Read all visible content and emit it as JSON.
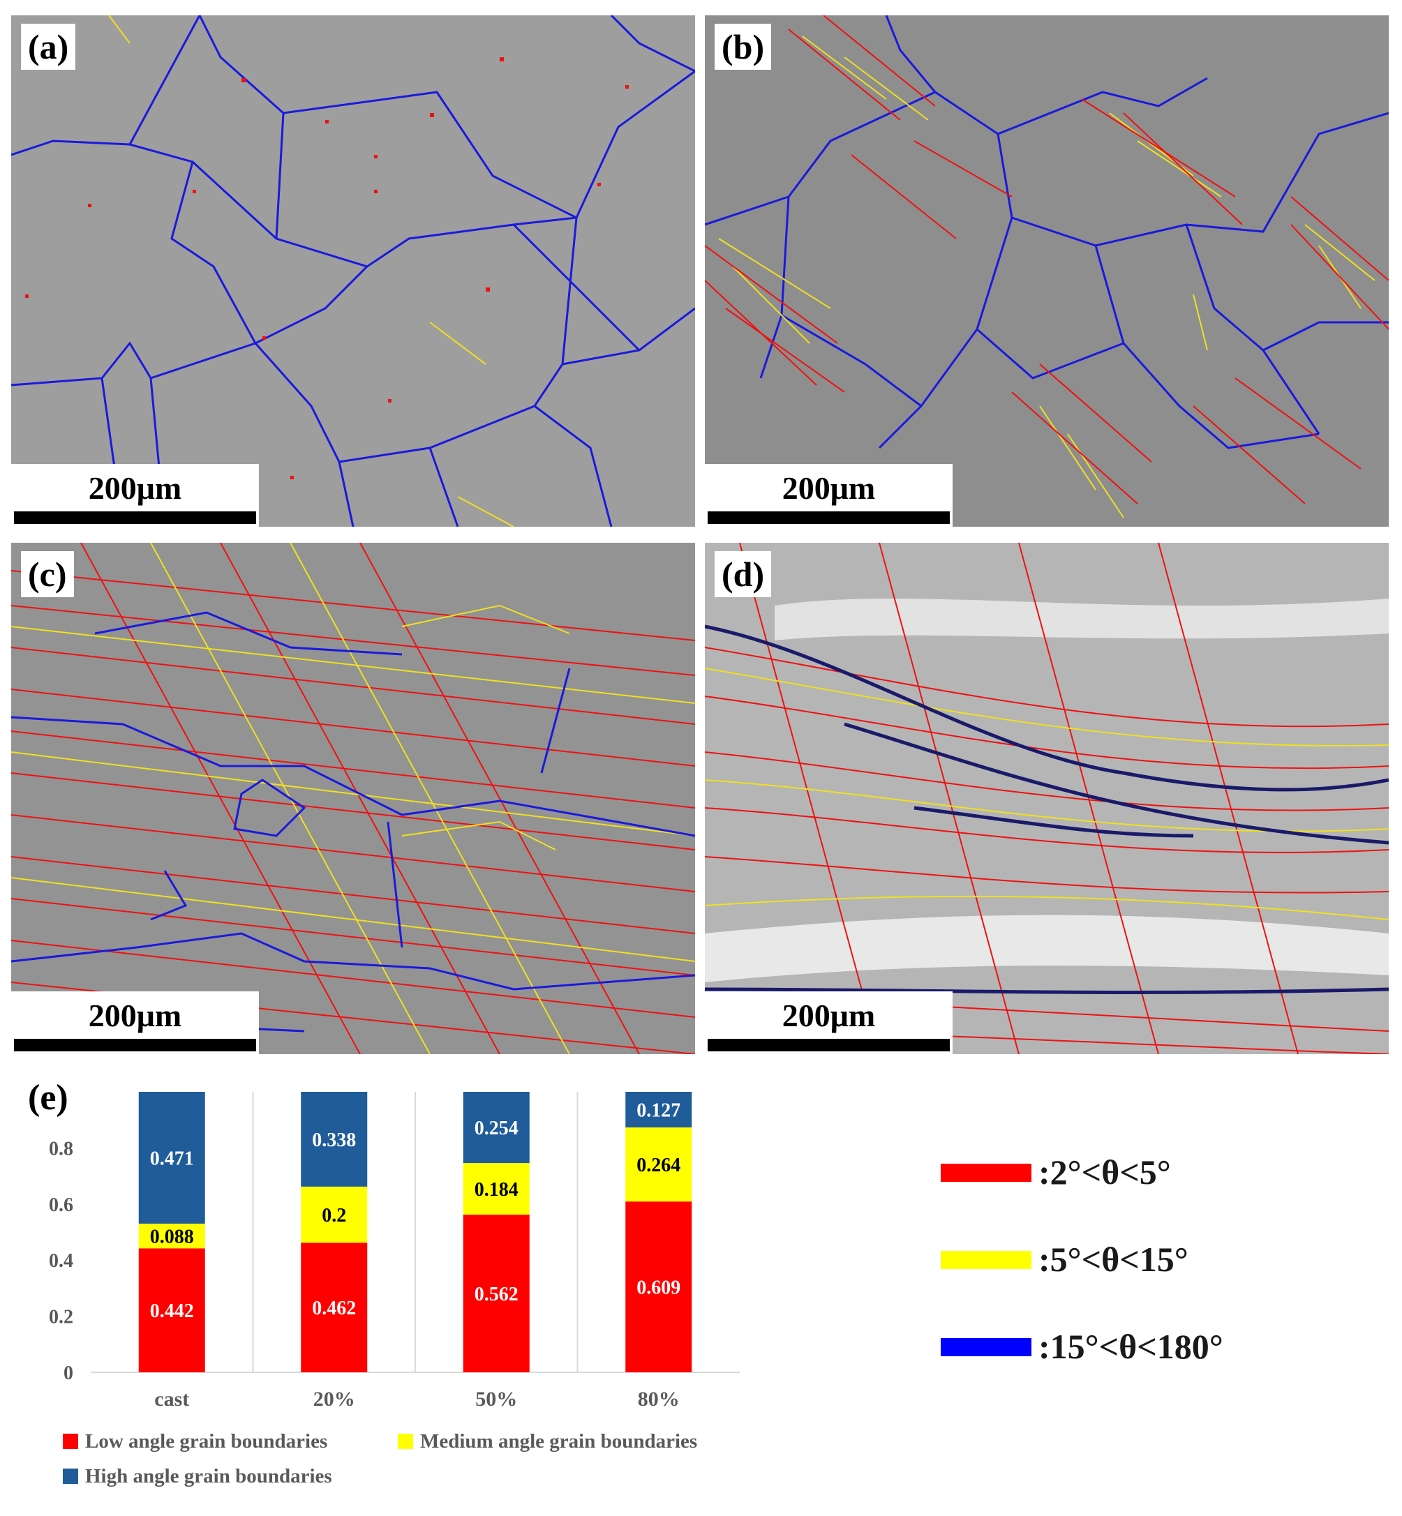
{
  "panels": [
    {
      "label": "(a)",
      "scale": "200μm"
    },
    {
      "label": "(b)",
      "scale": "200μm"
    },
    {
      "label": "(c)",
      "scale": "200μm"
    },
    {
      "label": "(d)",
      "scale": "200μm"
    }
  ],
  "angle_legend": {
    "items": [
      {
        "text": ":2°<θ<5°",
        "color": "#ff0000"
      },
      {
        "text": ":5°<θ<15°",
        "color": "#ffff00"
      },
      {
        "text": ":15°<θ<180°",
        "color": "#0000ff"
      }
    ]
  },
  "chart_data": {
    "label": "(e)",
    "type": "bar",
    "stacked": true,
    "categories": [
      "cast",
      "20%",
      "50%",
      "80%"
    ],
    "series": [
      {
        "name": "Low angle grain boundaries",
        "color": "#ff0000",
        "values": [
          0.442,
          0.462,
          0.562,
          0.609
        ]
      },
      {
        "name": "Medium angle grain boundaries",
        "color": "#ffff00",
        "values": [
          0.088,
          0.2,
          0.184,
          0.264
        ]
      },
      {
        "name": "High angle grain boundaries",
        "color": "#1f5c99",
        "values": [
          0.471,
          0.338,
          0.254,
          0.127
        ]
      }
    ],
    "yticks": [
      "0",
      "0.2",
      "0.4",
      "0.6",
      "0.8"
    ],
    "ylim": [
      0,
      1
    ],
    "grid": "vertical separators",
    "legend_position": "bottom"
  }
}
